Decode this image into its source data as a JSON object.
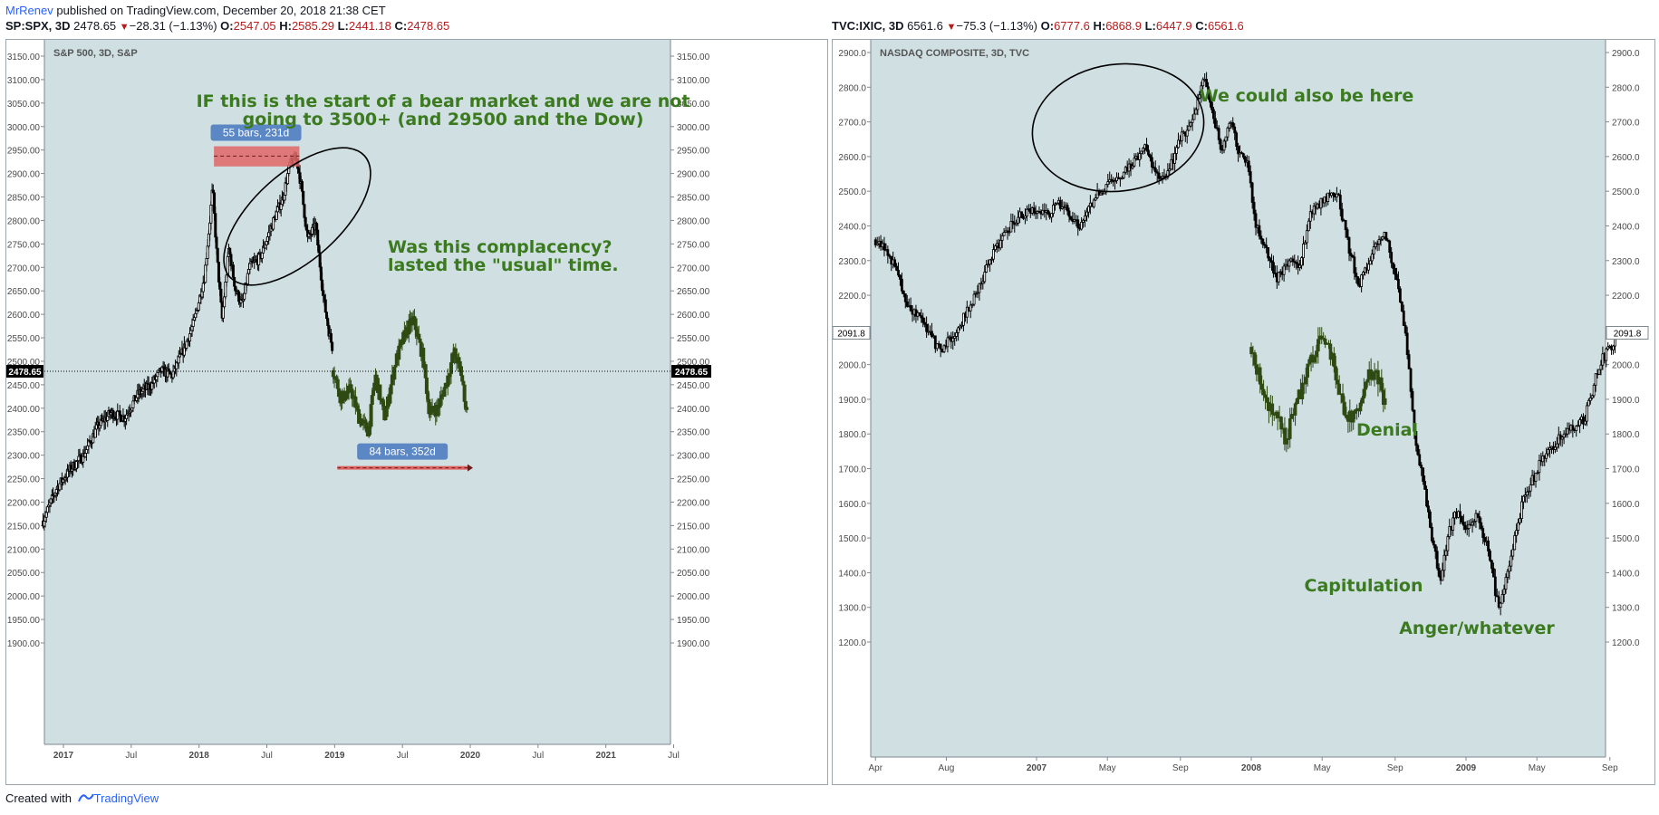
{
  "header": {
    "author": "MrRenev",
    "published": "published on TradingView.com, December 20, 2018 21:38 CET"
  },
  "footer": {
    "created_with": "Created with",
    "brand": "TradingView",
    "logo_icon": "tradingview-logo-icon"
  },
  "colors": {
    "chart_bg": "#cfdfe2",
    "candle": "#000000",
    "projection": "#2e4a12",
    "annotation_green": "#3b7a1e",
    "badge_blue": "#5b87c4",
    "range_red": "#e06666",
    "price_down": "#b71c1c"
  },
  "chart_data": [
    {
      "type": "candlestick",
      "symbol": "SP:SPX, 3D",
      "quote": {
        "last": "2478.65",
        "change": "−28.31 (−1.13%)",
        "open": "O:",
        "open_val": "2547.05",
        "high": "H:",
        "high_val": "2585.29",
        "low": "L:",
        "low_val": "2441.18",
        "close": "C:",
        "close_val": "2478.65"
      },
      "title": "S&P 500, 3D, S&P",
      "ylim": [
        1875,
        3200
      ],
      "y_ticks": [
        "1900.00",
        "1950.00",
        "2000.00",
        "2050.00",
        "2100.00",
        "2150.00",
        "2200.00",
        "2250.00",
        "2300.00",
        "2350.00",
        "2400.00",
        "2450.00",
        "2500.00",
        "2550.00",
        "2600.00",
        "2650.00",
        "2700.00",
        "2750.00",
        "2800.00",
        "2850.00",
        "2900.00",
        "2950.00",
        "3000.00",
        "3050.00",
        "3100.00",
        "3150.00"
      ],
      "x_ticks": [
        "2017",
        "Jul",
        "2018",
        "Jul",
        "2019",
        "Jul",
        "2020",
        "Jul",
        "2021",
        "Jul"
      ],
      "last_price_label": "2478.65",
      "path_points": [
        [
          2016.85,
          2160
        ],
        [
          2016.95,
          2230
        ],
        [
          2017.05,
          2270
        ],
        [
          2017.15,
          2300
        ],
        [
          2017.25,
          2360
        ],
        [
          2017.35,
          2390
        ],
        [
          2017.45,
          2380
        ],
        [
          2017.55,
          2430
        ],
        [
          2017.65,
          2450
        ],
        [
          2017.72,
          2480
        ],
        [
          2017.8,
          2470
        ],
        [
          2017.88,
          2520
        ],
        [
          2017.96,
          2580
        ],
        [
          2018.04,
          2680
        ],
        [
          2018.08,
          2800
        ],
        [
          2018.1,
          2870
        ],
        [
          2018.13,
          2730
        ],
        [
          2018.17,
          2590
        ],
        [
          2018.22,
          2740
        ],
        [
          2018.27,
          2650
        ],
        [
          2018.32,
          2620
        ],
        [
          2018.37,
          2700
        ],
        [
          2018.45,
          2720
        ],
        [
          2018.55,
          2800
        ],
        [
          2018.62,
          2850
        ],
        [
          2018.67,
          2920
        ],
        [
          2018.72,
          2930
        ],
        [
          2018.75,
          2880
        ],
        [
          2018.8,
          2760
        ],
        [
          2018.86,
          2790
        ],
        [
          2018.92,
          2630
        ],
        [
          2018.96,
          2560
        ],
        [
          2018.99,
          2520
        ]
      ],
      "projection_points": [
        [
          2018.99,
          2480
        ],
        [
          2019.05,
          2420
        ],
        [
          2019.12,
          2440
        ],
        [
          2019.18,
          2380
        ],
        [
          2019.25,
          2350
        ],
        [
          2019.3,
          2470
        ],
        [
          2019.37,
          2380
        ],
        [
          2019.45,
          2500
        ],
        [
          2019.52,
          2560
        ],
        [
          2019.58,
          2590
        ],
        [
          2019.65,
          2510
        ],
        [
          2019.7,
          2390
        ],
        [
          2019.76,
          2400
        ],
        [
          2019.82,
          2450
        ],
        [
          2019.88,
          2520
        ],
        [
          2019.93,
          2480
        ],
        [
          2019.98,
          2380
        ]
      ],
      "annotations": {
        "headline_line1": "IF this is the start of a bear market and we are not",
        "headline_line2": "going to 3500+ (and 29500 and the Dow)",
        "complacency_line1": "Was this complacency?",
        "complacency_line2": "lasted the \"usual\" time.",
        "badge_top": "55 bars, 231d",
        "badge_bottom": "84 bars, 352d"
      }
    },
    {
      "type": "candlestick",
      "symbol": "TVC:IXIC, 3D",
      "quote": {
        "last": "6561.6",
        "change": "−75.3 (−1.13%)",
        "open": "O:",
        "open_val": "6777.6",
        "high": "H:",
        "high_val": "6868.9",
        "low": "L:",
        "low_val": "6447.9",
        "close": "C:",
        "close_val": "6561.6"
      },
      "title": "NASDAQ COMPOSITE, 3D, TVC",
      "ylim": [
        1150,
        2950
      ],
      "y_ticks": [
        "1200.0",
        "1300.0",
        "1400.0",
        "1500.0",
        "1600.0",
        "1700.0",
        "1800.0",
        "1900.0",
        "2000.0",
        "2100.0",
        "2200.0",
        "2300.0",
        "2400.0",
        "2500.0",
        "2600.0",
        "2700.0",
        "2800.0",
        "2900.0"
      ],
      "x_ticks": [
        "Apr",
        "Aug",
        "2007",
        "May",
        "Sep",
        "2008",
        "May",
        "Sep",
        "2009",
        "May",
        "Sep"
      ],
      "last_price_label": "2091.8",
      "path_points": [
        [
          2006.25,
          2360
        ],
        [
          2006.32,
          2310
        ],
        [
          2006.4,
          2170
        ],
        [
          2006.48,
          2110
        ],
        [
          2006.55,
          2040
        ],
        [
          2006.63,
          2100
        ],
        [
          2006.72,
          2210
        ],
        [
          2006.8,
          2320
        ],
        [
          2006.9,
          2420
        ],
        [
          2006.98,
          2450
        ],
        [
          2007.05,
          2430
        ],
        [
          2007.12,
          2470
        ],
        [
          2007.2,
          2390
        ],
        [
          2007.28,
          2490
        ],
        [
          2007.35,
          2530
        ],
        [
          2007.42,
          2560
        ],
        [
          2007.5,
          2630
        ],
        [
          2007.55,
          2560
        ],
        [
          2007.6,
          2530
        ],
        [
          2007.67,
          2650
        ],
        [
          2007.72,
          2700
        ],
        [
          2007.78,
          2830
        ],
        [
          2007.82,
          2720
        ],
        [
          2007.86,
          2620
        ],
        [
          2007.9,
          2700
        ],
        [
          2007.95,
          2600
        ],
        [
          2007.98,
          2580
        ],
        [
          2008.02,
          2410
        ],
        [
          2008.07,
          2330
        ],
        [
          2008.12,
          2250
        ],
        [
          2008.17,
          2300
        ],
        [
          2008.22,
          2280
        ],
        [
          2008.28,
          2440
        ],
        [
          2008.35,
          2480
        ],
        [
          2008.4,
          2500
        ],
        [
          2008.45,
          2350
        ],
        [
          2008.5,
          2230
        ],
        [
          2008.57,
          2330
        ],
        [
          2008.62,
          2390
        ],
        [
          2008.68,
          2230
        ],
        [
          2008.72,
          2080
        ],
        [
          2008.76,
          1800
        ],
        [
          2008.8,
          1660
        ],
        [
          2008.84,
          1500
        ],
        [
          2008.88,
          1380
        ],
        [
          2008.92,
          1520
        ],
        [
          2008.96,
          1580
        ],
        [
          2009.0,
          1510
        ],
        [
          2009.05,
          1580
        ],
        [
          2009.1,
          1470
        ],
        [
          2009.15,
          1300
        ],
        [
          2009.2,
          1420
        ],
        [
          2009.27,
          1620
        ],
        [
          2009.35,
          1720
        ],
        [
          2009.45,
          1800
        ],
        [
          2009.55,
          1840
        ],
        [
          2009.62,
          2000
        ],
        [
          2009.68,
          2060
        ],
        [
          2009.7,
          2090
        ]
      ],
      "projection_points": [
        [
          2008.0,
          2050
        ],
        [
          2008.04,
          1960
        ],
        [
          2008.08,
          1890
        ],
        [
          2008.12,
          1850
        ],
        [
          2008.16,
          1780
        ],
        [
          2008.2,
          1870
        ],
        [
          2008.25,
          1960
        ],
        [
          2008.3,
          2050
        ],
        [
          2008.35,
          2080
        ],
        [
          2008.4,
          1960
        ],
        [
          2008.45,
          1840
        ],
        [
          2008.5,
          1870
        ],
        [
          2008.55,
          1980
        ],
        [
          2008.6,
          1950
        ],
        [
          2008.63,
          1860
        ]
      ],
      "annotations": {
        "here": "We could also be here",
        "denial": "Denial",
        "capitulation": "Capitulation",
        "anger": "Anger/whatever"
      }
    }
  ]
}
